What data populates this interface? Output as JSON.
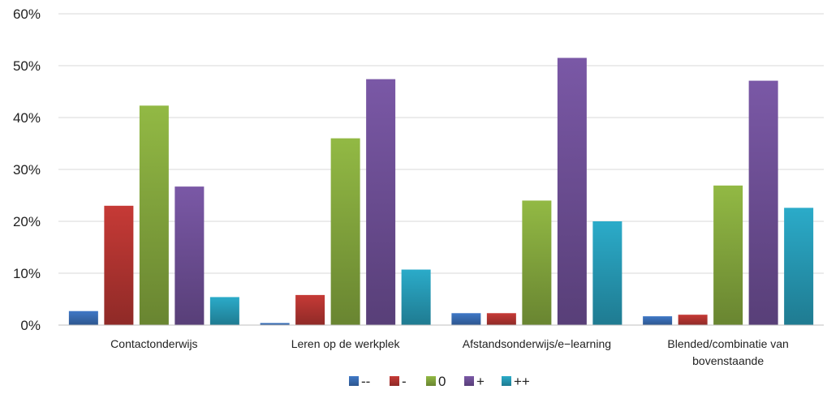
{
  "chart_data": {
    "type": "bar",
    "categories": [
      [
        "Contactonderwijs"
      ],
      [
        "Leren op de werkplek"
      ],
      [
        "Afstandsonderwijs/e−learning"
      ],
      [
        "Blended/combinatie van",
        "bovenstaande"
      ]
    ],
    "series": [
      {
        "name": "--",
        "color": "#3F78C6",
        "values": [
          2.7,
          0.4,
          2.3,
          1.7
        ]
      },
      {
        "name": "-",
        "color": "#C63A36",
        "values": [
          23.0,
          5.8,
          2.3,
          2.0
        ]
      },
      {
        "name": "0",
        "color": "#92B944",
        "values": [
          42.3,
          36.0,
          24.0,
          26.9
        ]
      },
      {
        "name": "+",
        "color": "#7A58A6",
        "values": [
          26.7,
          47.4,
          51.5,
          47.1
        ]
      },
      {
        "name": "++",
        "color": "#2BABC9",
        "values": [
          5.4,
          10.7,
          20.0,
          22.6
        ]
      }
    ],
    "ylim": [
      0,
      60
    ],
    "yticks": [
      0,
      10,
      20,
      30,
      40,
      50,
      60
    ],
    "ytick_labels": [
      "0%",
      "10%",
      "20%",
      "30%",
      "40%",
      "50%",
      "60%"
    ],
    "grid": true,
    "legend_position": "bottom"
  }
}
